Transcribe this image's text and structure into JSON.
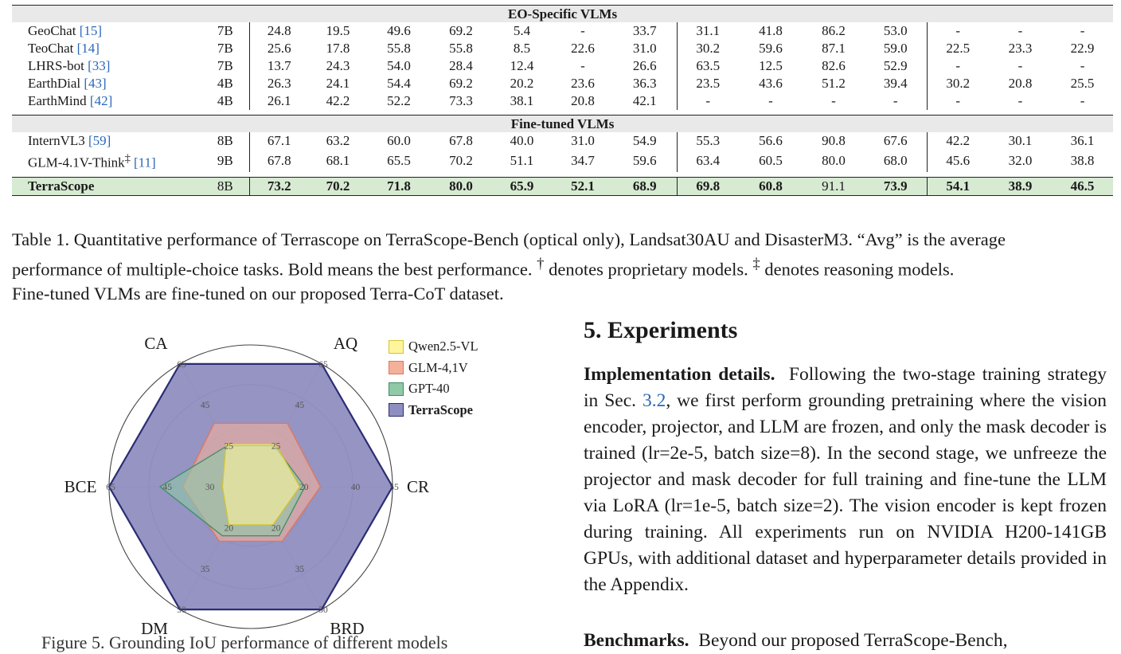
{
  "table": {
    "sections": [
      {
        "title": "EO-Specific VLMs",
        "rows": [
          {
            "name": "GeoChat",
            "cite": "[15]",
            "size": "7B",
            "g1": [
              "24.8",
              "19.5",
              "49.6",
              "69.2",
              "5.4",
              "-",
              "33.7"
            ],
            "g2": [
              "31.1",
              "41.8",
              "86.2",
              "53.0"
            ],
            "g3": [
              "-",
              "-",
              "-"
            ]
          },
          {
            "name": "TeoChat",
            "cite": "[14]",
            "size": "7B",
            "g1": [
              "25.6",
              "17.8",
              "55.8",
              "55.8",
              "8.5",
              "22.6",
              "31.0"
            ],
            "g2": [
              "30.2",
              "59.6",
              "87.1",
              "59.0"
            ],
            "g3": [
              "22.5",
              "23.3",
              "22.9"
            ]
          },
          {
            "name": "LHRS-bot",
            "cite": "[33]",
            "size": "7B",
            "g1": [
              "13.7",
              "24.3",
              "54.0",
              "28.4",
              "12.4",
              "-",
              "26.6"
            ],
            "g2": [
              "63.5",
              "12.5",
              "82.6",
              "52.9"
            ],
            "g3": [
              "-",
              "-",
              "-"
            ]
          },
          {
            "name": "EarthDial",
            "cite": "[43]",
            "size": "4B",
            "g1": [
              "26.3",
              "24.1",
              "54.4",
              "69.2",
              "20.2",
              "23.6",
              "36.3"
            ],
            "g2": [
              "23.5",
              "43.6",
              "51.2",
              "39.4"
            ],
            "g3": [
              "30.2",
              "20.8",
              "25.5"
            ]
          },
          {
            "name": "EarthMind",
            "cite": "[42]",
            "size": "4B",
            "g1": [
              "26.1",
              "42.2",
              "52.2",
              "73.3",
              "38.1",
              "20.8",
              "42.1"
            ],
            "g2": [
              "-",
              "-",
              "-",
              "-"
            ],
            "g3": [
              "-",
              "-",
              "-"
            ]
          }
        ]
      },
      {
        "title": "Fine-tuned VLMs",
        "rows": [
          {
            "name": "InternVL3",
            "cite": "[59]",
            "size": "8B",
            "g1": [
              "67.1",
              "63.2",
              "60.0",
              "67.8",
              "40.0",
              "31.0",
              "54.9"
            ],
            "g2": [
              "55.3",
              "56.6",
              "90.8",
              "67.6"
            ],
            "g3": [
              "42.2",
              "30.1",
              "36.1"
            ]
          },
          {
            "name": "GLM-4.1V-Think",
            "sup": "‡",
            "cite": "[11]",
            "size": "9B",
            "g1": [
              "67.8",
              "68.1",
              "65.5",
              "70.2",
              "51.1",
              "34.7",
              "59.6"
            ],
            "g2": [
              "63.4",
              "60.5",
              "80.0",
              "68.0"
            ],
            "g3": [
              "45.6",
              "32.0",
              "38.8"
            ]
          }
        ]
      }
    ],
    "ours": {
      "name": "TerraScope",
      "size": "8B",
      "g1": [
        "73.2",
        "70.2",
        "71.8",
        "80.0",
        "65.9",
        "52.1",
        "68.9"
      ],
      "g2": [
        "69.8",
        "60.8",
        "91.1",
        "73.9"
      ],
      "g3": [
        "54.1",
        "38.9",
        "46.5"
      ]
    }
  },
  "caption": {
    "line1": "Table 1. Quantitative performance of Terrascope on TerraScope-Bench (optical only), Landsat30AU and DisasterM3. “Avg” is the average",
    "line2a": "performance of multiple-choice tasks. Bold means the best performance.",
    "dagger": "†",
    "line2b": "denotes proprietary models.",
    "ddagger": "‡",
    "line2c": "denotes reasoning models.",
    "line3": "Fine-tuned VLMs are fine-tuned on our proposed Terra-CoT dataset."
  },
  "chart_data": {
    "type": "radar",
    "axes": [
      "CA",
      "AQ",
      "CR",
      "BRD",
      "DM",
      "BCE"
    ],
    "axis_ticks": {
      "CA": [
        "25",
        "45",
        "65"
      ],
      "AQ": [
        "25",
        "45",
        "65"
      ],
      "CR": [
        "20",
        "40",
        "55"
      ],
      "BRD": [
        "20",
        "35",
        "50"
      ],
      "DM": [
        "20",
        "35",
        "50"
      ],
      "BCE": [
        "30",
        "45",
        "65"
      ]
    },
    "axis_ranges": {
      "CA": [
        5,
        65
      ],
      "AQ": [
        5,
        65
      ],
      "CR": [
        0,
        55
      ],
      "BRD": [
        5,
        50
      ],
      "DM": [
        5,
        50
      ],
      "BCE": [
        15,
        65
      ]
    },
    "series": [
      {
        "name": "Qwen2.5-VL",
        "values": [
          26,
          26,
          19,
          19,
          19,
          25
        ],
        "color": "#fff59d",
        "stroke": "#d4c233"
      },
      {
        "name": "GLM-4,1V",
        "values": [
          36,
          36,
          27,
          25,
          25,
          39
        ],
        "color": "#f5b09a",
        "stroke": "#e0755a"
      },
      {
        "name": "GPT-40",
        "values": [
          25,
          25,
          21,
          23,
          23,
          47
        ],
        "color": "#8fc9a7",
        "stroke": "#3f8c63"
      },
      {
        "name": "TerraScope",
        "values": [
          65,
          65,
          55,
          50,
          50,
          65
        ],
        "color": "#8f8ec0",
        "stroke": "#2b2c73"
      }
    ],
    "legend_position": "top-right",
    "grid": true
  },
  "figure": {
    "caption_partial": "Figure 5. Grounding IoU performance of different models"
  },
  "section": {
    "title": "5. Experiments"
  },
  "impl": {
    "head": "Implementation details.",
    "text_a": "Following the two-stage training strategy in Sec.",
    "ref": "3.2",
    "text_b": ", we first perform grounding pretraining where the vision encoder, projector, and LLM are frozen, and only the mask decoder is trained (lr=2e-5, batch size=8). In the second stage, we unfreeze the projector and mask decoder for full training and fine-tune the LLM via LoRA (lr=1e-5, batch size=2). The vision encoder is kept frozen during training. All experiments run on NVIDIA H200-141GB GPUs, with additional dataset and hyperparameter details provided in the Appendix."
  },
  "bench": {
    "head": "Benchmarks.",
    "text": "Beyond our proposed TerraScope-Bench,"
  }
}
